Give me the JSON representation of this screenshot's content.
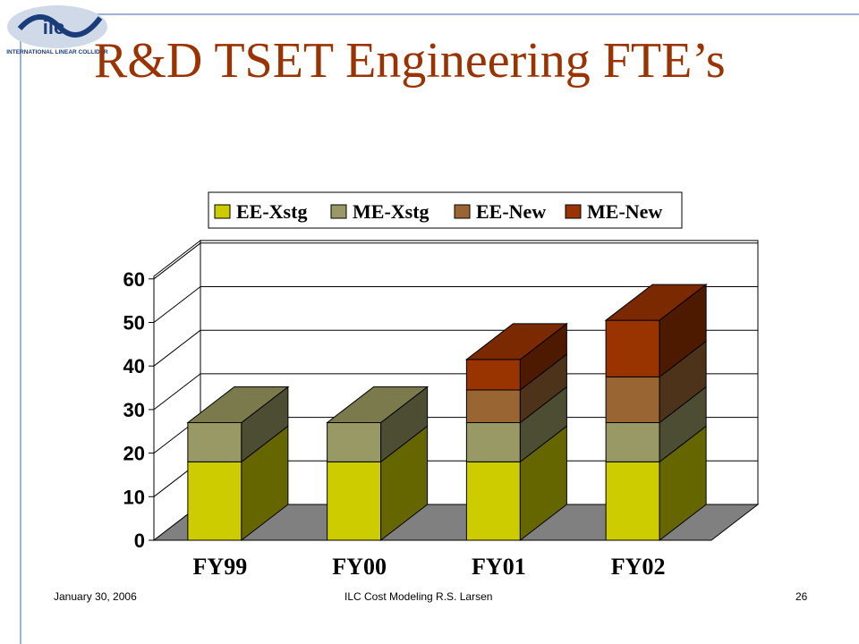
{
  "slide": {
    "title": "R&D TSET Engineering FTE’s",
    "logo_text": "INTERNATIONAL LINEAR COLLIDER",
    "footer_date": "January 30, 2006",
    "footer_center": "ILC Cost Modeling   R.S. Larsen",
    "page_number": "26"
  },
  "colors": {
    "title": "#993300",
    "rule": "#9db3d6",
    "floor": "#808080"
  },
  "chart_data": {
    "type": "bar",
    "stacked": true,
    "three_d": true,
    "title": "",
    "xlabel": "",
    "ylabel": "",
    "categories": [
      "FY99",
      "FY00",
      "FY01",
      "FY02"
    ],
    "ylim": [
      0,
      60
    ],
    "yticks": [
      0,
      10,
      20,
      30,
      40,
      50,
      60
    ],
    "grid": true,
    "legend_position": "top",
    "series": [
      {
        "name": "EE-Xstg",
        "values": [
          18,
          18,
          18,
          18
        ],
        "color": "#cccc00",
        "side": "#666600",
        "top": "#999900"
      },
      {
        "name": "ME-Xstg",
        "values": [
          9,
          9,
          9,
          9
        ],
        "color": "#999966",
        "side": "#4d4d33",
        "top": "#7a7a4d"
      },
      {
        "name": "EE-New",
        "values": [
          0,
          0,
          7.5,
          10.5
        ],
        "color": "#996633",
        "side": "#4d331a",
        "top": "#7a5229"
      },
      {
        "name": "ME-New",
        "values": [
          0,
          0,
          7,
          13
        ],
        "color": "#993300",
        "side": "#4d1a00",
        "top": "#7a2900"
      }
    ]
  }
}
